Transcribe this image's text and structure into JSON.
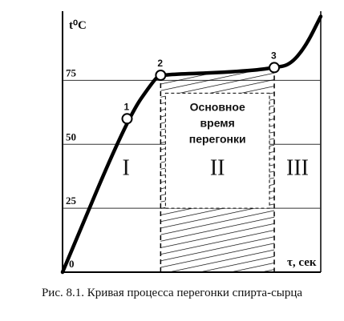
{
  "chart_data": {
    "type": "line",
    "ylabel": "t⁰C",
    "xlabel": "τ, сек",
    "y_ticks": [
      "75",
      "50",
      "25"
    ],
    "x_tick": "0",
    "ylim": [
      0,
      100
    ],
    "series": [
      {
        "values": [
          [
            0,
            0
          ],
          [
            25,
            60
          ],
          [
            36,
            76
          ],
          [
            38,
            77
          ],
          [
            45,
            77.5
          ],
          [
            60,
            78
          ],
          [
            75,
            79
          ],
          [
            82,
            80
          ],
          [
            88,
            81
          ],
          [
            94,
            88
          ],
          [
            100,
            100
          ]
        ]
      }
    ],
    "points": [
      {
        "label": "1",
        "x": 25,
        "y": 60
      },
      {
        "label": "2",
        "x": 38,
        "y": 77
      },
      {
        "label": "3",
        "x": 82,
        "y": 80
      }
    ],
    "zones": [
      "I",
      "II",
      "III"
    ],
    "annotation": {
      "line1": "Основное",
      "line2": "время",
      "line3": "перегонки"
    },
    "grid": true,
    "colors": {
      "line": "#000000",
      "grid": "#333333"
    }
  },
  "caption": "Рис. 8.1. Кривая процесса перегонки спирта-сырца"
}
